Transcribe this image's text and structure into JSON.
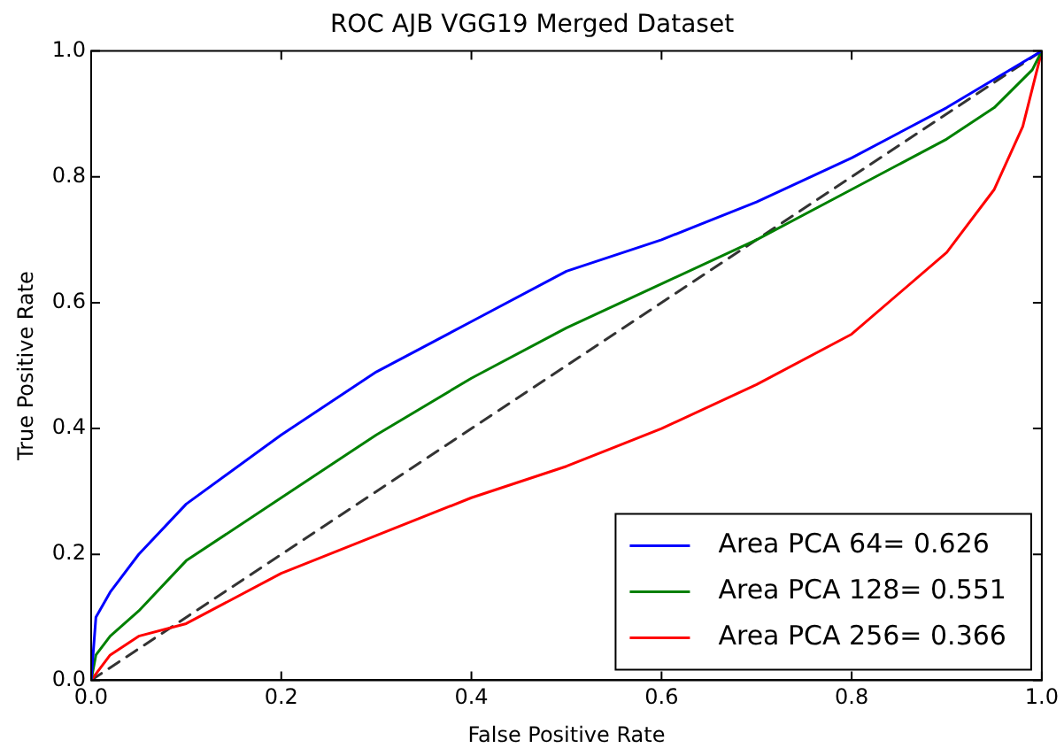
{
  "chart_data": {
    "type": "line",
    "title": "ROC AJB VGG19 Merged Dataset",
    "xlabel": "False Positive Rate",
    "ylabel": "True Positive Rate",
    "xlim": [
      0,
      1
    ],
    "ylim": [
      0,
      1
    ],
    "xticks": [
      {
        "value": 0,
        "label": "0.0"
      },
      {
        "value": 0.2,
        "label": "0.2"
      },
      {
        "value": 0.4,
        "label": "0.4"
      },
      {
        "value": 0.6,
        "label": "0.6"
      },
      {
        "value": 0.8,
        "label": "0.8"
      },
      {
        "value": 1,
        "label": "1.0"
      }
    ],
    "yticks": [
      {
        "value": 0,
        "label": "0.0"
      },
      {
        "value": 0.2,
        "label": "0.2"
      },
      {
        "value": 0.4,
        "label": "0.4"
      },
      {
        "value": 0.6,
        "label": "0.6"
      },
      {
        "value": 0.8,
        "label": "0.8"
      },
      {
        "value": 1,
        "label": "1.0"
      }
    ],
    "grid": false,
    "legend": "bottom right",
    "marker": "none",
    "series": [
      {
        "name": "Area PCA 64= 0.626",
        "color": "#0000ff",
        "x": [
          0,
          0.005,
          0.02,
          0.05,
          0.1,
          0.2,
          0.3,
          0.4,
          0.5,
          0.6,
          0.7,
          0.8,
          0.9,
          1
        ],
        "values": [
          0,
          0.1,
          0.14,
          0.2,
          0.28,
          0.39,
          0.49,
          0.57,
          0.65,
          0.7,
          0.76,
          0.83,
          0.91,
          1
        ]
      },
      {
        "name": "Area PCA 128= 0.551",
        "color": "#008000",
        "x": [
          0,
          0.005,
          0.02,
          0.05,
          0.1,
          0.2,
          0.3,
          0.4,
          0.5,
          0.6,
          0.7,
          0.8,
          0.9,
          0.95,
          0.99,
          1
        ],
        "values": [
          0,
          0.04,
          0.07,
          0.11,
          0.19,
          0.29,
          0.39,
          0.48,
          0.56,
          0.63,
          0.7,
          0.78,
          0.86,
          0.91,
          0.97,
          1
        ]
      },
      {
        "name": "Area PCA 256= 0.366",
        "color": "#ff0000",
        "x": [
          0,
          0.02,
          0.05,
          0.1,
          0.2,
          0.3,
          0.4,
          0.5,
          0.6,
          0.7,
          0.8,
          0.9,
          0.95,
          0.98,
          1
        ],
        "values": [
          0,
          0.04,
          0.07,
          0.09,
          0.17,
          0.23,
          0.29,
          0.34,
          0.4,
          0.47,
          0.55,
          0.68,
          0.78,
          0.88,
          1
        ]
      },
      {
        "color": "#333333",
        "line_style": "dashed",
        "x": [
          0,
          1
        ],
        "values": [
          0,
          1
        ]
      }
    ]
  }
}
